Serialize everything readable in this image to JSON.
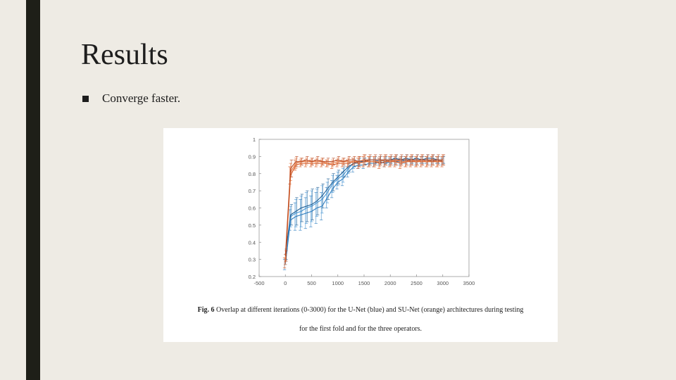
{
  "slide": {
    "title": "Results",
    "bullets": [
      "Converge faster."
    ]
  },
  "figure": {
    "caption_label": "Fig. 6",
    "caption_line1": "Overlap at different iterations (0-3000) for the U-Net (blue) and SU-Net (orange) architectures during testing",
    "caption_line2": "for the first fold and for the three operators."
  },
  "colors": {
    "background": "#eeebe4",
    "left_bar": "#1e1f18",
    "blue": "#2f7fc1",
    "orange": "#d95319"
  },
  "chart_data": {
    "type": "line",
    "title": "",
    "xlabel": "",
    "ylabel": "",
    "xlim": [
      -500,
      3500
    ],
    "ylim": [
      0.2,
      1.0
    ],
    "xticks": [
      -500,
      0,
      500,
      1000,
      1500,
      2000,
      2500,
      3000,
      3500
    ],
    "yticks": [
      0.2,
      0.3,
      0.4,
      0.5,
      0.6,
      0.7,
      0.8,
      0.9,
      1.0
    ],
    "x": [
      0,
      100,
      200,
      300,
      400,
      500,
      600,
      700,
      800,
      900,
      1000,
      1100,
      1200,
      1300,
      1400,
      1500,
      1600,
      1700,
      1800,
      1900,
      2000,
      2100,
      2200,
      2300,
      2400,
      2500,
      2600,
      2700,
      2800,
      2900,
      3000
    ],
    "series": [
      {
        "values": [
          0.27,
          0.53,
          0.55,
          0.56,
          0.57,
          0.58,
          0.6,
          0.61,
          0.66,
          0.71,
          0.75,
          0.77,
          0.81,
          0.84,
          0.85,
          0.85,
          0.86,
          0.86,
          0.87,
          0.86,
          0.87,
          0.87,
          0.87,
          0.88,
          0.87,
          0.87,
          0.88,
          0.88,
          0.87,
          0.88,
          0.87
        ],
        "err": [
          0.03,
          0.06,
          0.08,
          0.09,
          0.09,
          0.09,
          0.09,
          0.08,
          0.06,
          0.05,
          0.04,
          0.04,
          0.03,
          0.03,
          0.02,
          0.02,
          0.02,
          0.02,
          0.02,
          0.02,
          0.02,
          0.02,
          0.02,
          0.02,
          0.02,
          0.02,
          0.02,
          0.02,
          0.02,
          0.02,
          0.02
        ],
        "color": "#2f7fc1"
      },
      {
        "values": [
          0.3,
          0.55,
          0.57,
          0.58,
          0.6,
          0.61,
          0.63,
          0.65,
          0.69,
          0.74,
          0.77,
          0.79,
          0.83,
          0.86,
          0.86,
          0.87,
          0.87,
          0.87,
          0.88,
          0.87,
          0.88,
          0.88,
          0.88,
          0.88,
          0.88,
          0.88,
          0.88,
          0.88,
          0.88,
          0.88,
          0.88
        ],
        "err": [
          0.03,
          0.06,
          0.08,
          0.09,
          0.09,
          0.09,
          0.08,
          0.08,
          0.06,
          0.05,
          0.04,
          0.04,
          0.03,
          0.03,
          0.02,
          0.02,
          0.02,
          0.02,
          0.02,
          0.02,
          0.02,
          0.02,
          0.02,
          0.02,
          0.02,
          0.02,
          0.02,
          0.02,
          0.02,
          0.02,
          0.02
        ],
        "color": "#4a9ad8"
      },
      {
        "values": [
          0.33,
          0.56,
          0.58,
          0.6,
          0.61,
          0.62,
          0.64,
          0.67,
          0.71,
          0.75,
          0.78,
          0.81,
          0.84,
          0.86,
          0.87,
          0.87,
          0.88,
          0.88,
          0.88,
          0.88,
          0.88,
          0.89,
          0.88,
          0.89,
          0.88,
          0.89,
          0.88,
          0.89,
          0.89,
          0.88,
          0.88
        ],
        "err": [
          0.03,
          0.06,
          0.08,
          0.08,
          0.09,
          0.09,
          0.08,
          0.07,
          0.06,
          0.05,
          0.04,
          0.03,
          0.03,
          0.02,
          0.02,
          0.02,
          0.02,
          0.02,
          0.02,
          0.02,
          0.02,
          0.02,
          0.02,
          0.02,
          0.02,
          0.02,
          0.02,
          0.02,
          0.02,
          0.02,
          0.02
        ],
        "color": "#1f5f95"
      },
      {
        "values": [
          0.28,
          0.79,
          0.85,
          0.86,
          0.86,
          0.86,
          0.86,
          0.86,
          0.86,
          0.85,
          0.86,
          0.86,
          0.86,
          0.87,
          0.86,
          0.87,
          0.87,
          0.87,
          0.86,
          0.87,
          0.87,
          0.87,
          0.86,
          0.87,
          0.87,
          0.87,
          0.87,
          0.87,
          0.87,
          0.87,
          0.87
        ],
        "err": [
          0.03,
          0.05,
          0.03,
          0.02,
          0.02,
          0.02,
          0.02,
          0.02,
          0.02,
          0.02,
          0.02,
          0.02,
          0.02,
          0.02,
          0.03,
          0.03,
          0.03,
          0.03,
          0.03,
          0.03,
          0.03,
          0.03,
          0.03,
          0.03,
          0.03,
          0.03,
          0.03,
          0.03,
          0.03,
          0.03,
          0.03
        ],
        "color": "#d95319"
      },
      {
        "values": [
          0.3,
          0.81,
          0.86,
          0.87,
          0.87,
          0.87,
          0.87,
          0.87,
          0.86,
          0.86,
          0.87,
          0.87,
          0.87,
          0.87,
          0.87,
          0.88,
          0.87,
          0.87,
          0.87,
          0.88,
          0.87,
          0.88,
          0.87,
          0.87,
          0.88,
          0.87,
          0.88,
          0.87,
          0.88,
          0.87,
          0.88
        ],
        "err": [
          0.03,
          0.05,
          0.03,
          0.02,
          0.02,
          0.02,
          0.02,
          0.02,
          0.02,
          0.02,
          0.02,
          0.02,
          0.02,
          0.02,
          0.03,
          0.03,
          0.03,
          0.03,
          0.03,
          0.03,
          0.03,
          0.03,
          0.03,
          0.03,
          0.03,
          0.03,
          0.03,
          0.03,
          0.03,
          0.03,
          0.03
        ],
        "color": "#e8783f"
      },
      {
        "values": [
          0.32,
          0.83,
          0.87,
          0.87,
          0.88,
          0.87,
          0.88,
          0.87,
          0.87,
          0.87,
          0.88,
          0.87,
          0.88,
          0.88,
          0.87,
          0.88,
          0.88,
          0.88,
          0.88,
          0.88,
          0.88,
          0.88,
          0.88,
          0.88,
          0.88,
          0.88,
          0.88,
          0.88,
          0.88,
          0.88,
          0.88
        ],
        "err": [
          0.03,
          0.05,
          0.03,
          0.02,
          0.02,
          0.02,
          0.02,
          0.02,
          0.02,
          0.02,
          0.02,
          0.02,
          0.02,
          0.02,
          0.03,
          0.03,
          0.03,
          0.03,
          0.03,
          0.03,
          0.03,
          0.03,
          0.03,
          0.03,
          0.03,
          0.03,
          0.03,
          0.03,
          0.03,
          0.03,
          0.03
        ],
        "color": "#b8441a"
      }
    ],
    "grid": false,
    "legend": "none"
  }
}
